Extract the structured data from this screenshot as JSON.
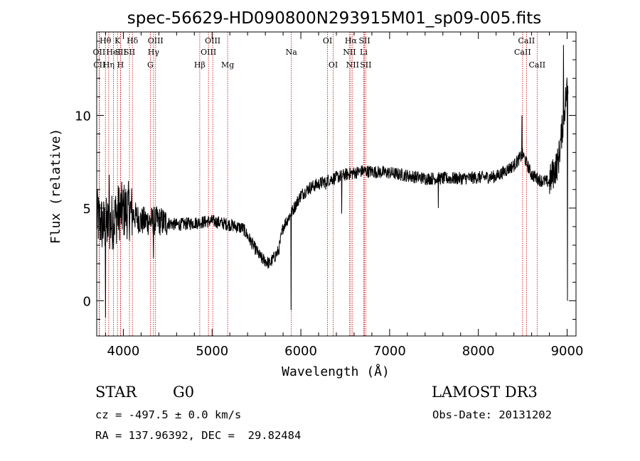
{
  "chart_data": {
    "type": "line",
    "title": "spec-56629-HD090800N293915M01_sp09-005.fits",
    "xlabel": "Wavelength (Å)",
    "ylabel": "Flux (relative)",
    "xlim": [
      3700,
      9100
    ],
    "ylim": [
      -1.9,
      14.5
    ],
    "xticks": [
      4000,
      5000,
      6000,
      7000,
      8000,
      9000
    ],
    "yticks": [
      0,
      5,
      10
    ],
    "grid": false,
    "legend": "none",
    "spectrum_anchors": [
      [
        3700,
        4.5
      ],
      [
        3780,
        4.0
      ],
      [
        3850,
        4.1
      ],
      [
        3950,
        4.8
      ],
      [
        4050,
        4.9
      ],
      [
        4200,
        4.3
      ],
      [
        4400,
        4.3
      ],
      [
        4600,
        4.1
      ],
      [
        4800,
        4.2
      ],
      [
        5000,
        4.3
      ],
      [
        5200,
        4.1
      ],
      [
        5350,
        3.9
      ],
      [
        5450,
        3.1
      ],
      [
        5550,
        2.3
      ],
      [
        5650,
        2.0
      ],
      [
        5750,
        2.7
      ],
      [
        5800,
        4.0
      ],
      [
        5900,
        4.8
      ],
      [
        6000,
        5.7
      ],
      [
        6100,
        6.1
      ],
      [
        6300,
        6.5
      ],
      [
        6500,
        6.8
      ],
      [
        6700,
        7.0
      ],
      [
        7000,
        6.9
      ],
      [
        7400,
        6.6
      ],
      [
        7800,
        6.6
      ],
      [
        8200,
        6.7
      ],
      [
        8400,
        7.3
      ],
      [
        8500,
        7.9
      ],
      [
        8600,
        6.8
      ],
      [
        8700,
        6.5
      ],
      [
        8800,
        6.4
      ],
      [
        8900,
        7.5
      ],
      [
        9000,
        11.5
      ]
    ],
    "spectrum_spikes": [
      [
        3800,
        -0.9
      ],
      [
        3840,
        6.8
      ],
      [
        4340,
        2.3
      ],
      [
        5890,
        -0.5
      ],
      [
        6280,
        6.0
      ],
      [
        6460,
        4.7
      ],
      [
        7550,
        5.0
      ],
      [
        8490,
        10.0
      ],
      [
        8960,
        13.8
      ],
      [
        9005,
        0.0
      ]
    ],
    "spectral_lines": [
      {
        "name": "OII",
        "wavelength": 3727,
        "row": 2
      },
      {
        "name": "CII",
        "wavelength": 3730,
        "row": 3
      },
      {
        "name": "Hθ",
        "wavelength": 3798,
        "row": 1
      },
      {
        "name": "Hη",
        "wavelength": 3835,
        "row": 3
      },
      {
        "name": "HeI",
        "wavelength": 3889,
        "row": 2
      },
      {
        "name": "K",
        "wavelength": 3934,
        "row": 1
      },
      {
        "name": "SII",
        "wavelength": 3970,
        "row": 2
      },
      {
        "name": "H",
        "wavelength": 3968,
        "row": 3
      },
      {
        "name": "Hδ",
        "wavelength": 4102,
        "row": 1
      },
      {
        "name": "SII",
        "wavelength": 4069,
        "row": 2
      },
      {
        "name": "OIII",
        "wavelength": 4363,
        "row": 1
      },
      {
        "name": "Hγ",
        "wavelength": 4340,
        "row": 2
      },
      {
        "name": "G",
        "wavelength": 4304,
        "row": 3
      },
      {
        "name": "Hβ",
        "wavelength": 4861,
        "row": 3
      },
      {
        "name": "OIII",
        "wavelength": 5007,
        "row": 1
      },
      {
        "name": "OIII",
        "wavelength": 4959,
        "row": 2
      },
      {
        "name": "Mg",
        "wavelength": 5175,
        "row": 3
      },
      {
        "name": "Na",
        "wavelength": 5893,
        "row": 2
      },
      {
        "name": "OI",
        "wavelength": 6300,
        "row": 1
      },
      {
        "name": "OI",
        "wavelength": 6364,
        "row": 3
      },
      {
        "name": "Hα",
        "wavelength": 6563,
        "row": 1
      },
      {
        "name": "SII",
        "wavelength": 6717,
        "row": 1
      },
      {
        "name": "NII",
        "wavelength": 6548,
        "row": 2
      },
      {
        "name": "Li",
        "wavelength": 6708,
        "row": 2
      },
      {
        "name": "NII",
        "wavelength": 6583,
        "row": 3
      },
      {
        "name": "SII",
        "wavelength": 6731,
        "row": 3
      },
      {
        "name": "CaII",
        "wavelength": 8542,
        "row": 1
      },
      {
        "name": "CaII",
        "wavelength": 8498,
        "row": 2
      },
      {
        "name": "CaII",
        "wavelength": 8662,
        "row": 3
      }
    ],
    "line_color": "#cc0000"
  },
  "info": {
    "object_class": "STAR",
    "subclass": "G0",
    "survey": "LAMOST DR3",
    "cz": "cz = -497.5 ± 0.0 km/s",
    "obs_date": "Obs-Date: 20131202",
    "coords": "RA = 137.96392, DEC =  29.82484"
  }
}
